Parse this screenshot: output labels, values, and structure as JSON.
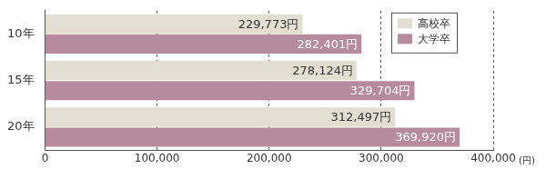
{
  "chart_data": {
    "type": "bar",
    "orientation": "horizontal",
    "categories": [
      "10年",
      "15年",
      "20年"
    ],
    "series": [
      {
        "name": "高校卒",
        "color": "#e2dfd2",
        "values": [
          229773,
          278124,
          312497
        ],
        "value_labels": [
          "229,773円",
          "278,124円",
          "312,497円"
        ]
      },
      {
        "name": "大学卒",
        "color": "#b68b9b",
        "values": [
          282401,
          329704,
          369920
        ],
        "value_labels": [
          "282,401円",
          "329,704円",
          "369,920円"
        ]
      }
    ],
    "xlabel": "(円)",
    "xlim": [
      0,
      400000
    ],
    "xticks": [
      0,
      {
        "value": 100000,
        "label": "100,000"
      },
      {
        "value": 200000,
        "label": "200,000"
      },
      {
        "value": 300000,
        "label": "300,000"
      },
      {
        "value": 400000,
        "label": "400,000"
      }
    ],
    "grid": true,
    "legend": "upper right",
    "data_labels": true
  }
}
